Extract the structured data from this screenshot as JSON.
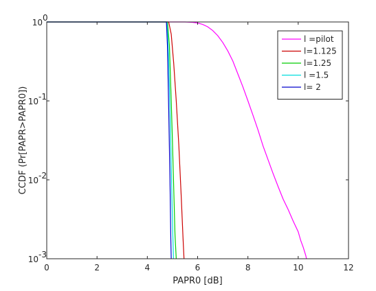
{
  "chart_data": {
    "type": "line",
    "title": "",
    "xlabel": "PAPR0 [dB]",
    "ylabel": "CCDF (Pr[PAPR>PAPR0])",
    "xlim": [
      0,
      12
    ],
    "ylim": [
      0.001,
      1
    ],
    "yscale": "log",
    "grid": false,
    "legend_position": "top-right",
    "x_ticks": [
      0,
      2,
      4,
      6,
      8,
      10,
      12
    ],
    "y_ticks": [
      {
        "value": 1,
        "base": "10",
        "exp": "0"
      },
      {
        "value": 0.1,
        "base": "10",
        "exp": "-1"
      },
      {
        "value": 0.01,
        "base": "10",
        "exp": "-2"
      },
      {
        "value": 0.001,
        "base": "10",
        "exp": "-3"
      }
    ],
    "series": [
      {
        "name": "l =pilot",
        "color": "#ff00ff",
        "x": [
          0,
          5.0,
          5.5,
          5.8,
          6.0,
          6.2,
          6.4,
          6.6,
          6.8,
          7.0,
          7.2,
          7.4,
          7.6,
          7.8,
          8.0,
          8.2,
          8.4,
          8.6,
          8.8,
          9.0,
          9.2,
          9.4,
          9.6,
          9.8,
          10.0,
          10.1,
          10.2,
          10.3,
          10.33
        ],
        "y": [
          1,
          1,
          0.999,
          0.99,
          0.97,
          0.93,
          0.87,
          0.78,
          0.67,
          0.55,
          0.43,
          0.32,
          0.22,
          0.15,
          0.1,
          0.066,
          0.043,
          0.027,
          0.018,
          0.012,
          0.0082,
          0.0057,
          0.0042,
          0.003,
          0.0022,
          0.0017,
          0.0014,
          0.0011,
          0.001
        ]
      },
      {
        "name": "l=1.125",
        "color": "#cc0000",
        "x": [
          0,
          4.85,
          4.95,
          5.05,
          5.15,
          5.25,
          5.35,
          5.42,
          5.46
        ],
        "y": [
          1,
          1,
          0.7,
          0.3,
          0.1,
          0.028,
          0.006,
          0.0018,
          0.001
        ]
      },
      {
        "name": "l=1.25",
        "color": "#00cc00",
        "x": [
          0,
          4.8,
          4.88,
          4.95,
          5.0,
          5.05,
          5.1,
          5.15
        ],
        "y": [
          1,
          1,
          0.5,
          0.1,
          0.03,
          0.008,
          0.002,
          0.001
        ]
      },
      {
        "name": "l =1.5",
        "color": "#00dddd",
        "x": [
          0,
          4.78,
          4.84,
          4.9,
          4.95,
          5.0,
          5.04
        ],
        "y": [
          1,
          1,
          0.4,
          0.08,
          0.015,
          0.003,
          0.001
        ]
      },
      {
        "name": "l= 2",
        "color": "#0000cc",
        "x": [
          0,
          4.76,
          4.8,
          4.85,
          4.9,
          4.93,
          4.95
        ],
        "y": [
          1,
          1,
          0.5,
          0.08,
          0.01,
          0.002,
          0.001
        ]
      }
    ]
  }
}
